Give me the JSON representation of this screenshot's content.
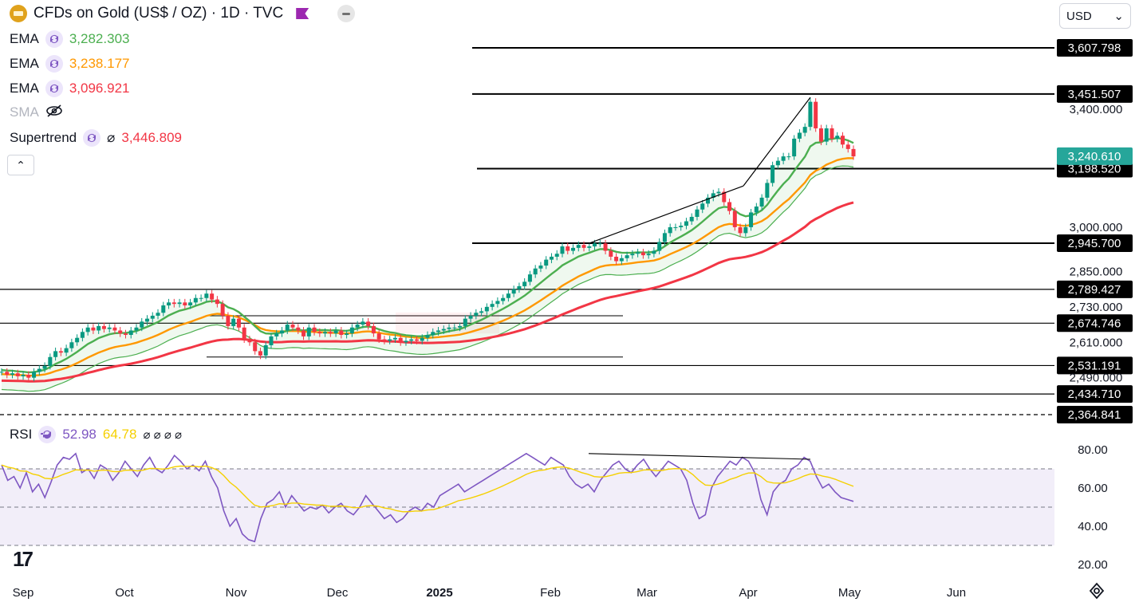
{
  "header": {
    "title": "CFDs on Gold (US$ / OZ) · 1D · TVC",
    "currency": "USD"
  },
  "indicators": [
    {
      "name": "EMA",
      "value": "3,282.303",
      "color": "#4caf50"
    },
    {
      "name": "EMA",
      "value": "3,238.177",
      "color": "#ff9800"
    },
    {
      "name": "EMA",
      "value": "3,096.921",
      "color": "#f23645"
    },
    {
      "name": "SMA",
      "value": "",
      "color": "#b2b5be"
    },
    {
      "name": "Supertrend",
      "value": "3,446.809",
      "color": "#f23645",
      "prefix": "⌀"
    }
  ],
  "rsi_legend": {
    "name": "RSI",
    "value": "52.98",
    "ma_value": "64.78",
    "extra": "⌀ ⌀ ⌀ ⌀"
  },
  "chart_data": {
    "type": "candlestick",
    "price_axis_ticks": [
      3400,
      3000,
      2850,
      2730,
      2610,
      2490
    ],
    "price_axis_tick_labels": [
      "3,400.000",
      "3,000.000",
      "2,850.000",
      "2,730.000",
      "2,610.000",
      "2,490.000"
    ],
    "price_ylim": [
      2364,
      3640
    ],
    "horizontal_levels": [
      {
        "value": 3607.798,
        "label": "3,607.798",
        "style": "solid"
      },
      {
        "value": 3451.507,
        "label": "3,451.507",
        "style": "solid"
      },
      {
        "value": 3198.52,
        "label": "3,198.520",
        "style": "solid"
      },
      {
        "value": 2945.7,
        "label": "2,945.700",
        "style": "solid"
      },
      {
        "value": 2789.427,
        "label": "2,789.427",
        "style": "solid"
      },
      {
        "value": 2674.746,
        "label": "2,674.746",
        "style": "solid"
      },
      {
        "value": 2531.191,
        "label": "2,531.191",
        "style": "solid"
      },
      {
        "value": 2434.71,
        "label": "2,434.710",
        "style": "solid"
      },
      {
        "value": 2364.841,
        "label": "2,364.841",
        "style": "dashed"
      }
    ],
    "last_price": {
      "value": 3240.61,
      "label": "3,240.610"
    },
    "x_axis_labels": [
      "Sep",
      "Oct",
      "Nov",
      "Dec",
      "2025",
      "Feb",
      "Mar",
      "Apr",
      "May",
      "Jun"
    ],
    "approx_closes": [
      2510,
      2500,
      2505,
      2495,
      2500,
      2490,
      2510,
      2520,
      2530,
      2560,
      2580,
      2575,
      2590,
      2610,
      2625,
      2645,
      2660,
      2650,
      2665,
      2655,
      2660,
      2650,
      2640,
      2635,
      2650,
      2660,
      2680,
      2690,
      2700,
      2710,
      2735,
      2745,
      2740,
      2745,
      2735,
      2745,
      2760,
      2760,
      2775,
      2755,
      2740,
      2700,
      2665,
      2690,
      2660,
      2620,
      2610,
      2580,
      2565,
      2600,
      2630,
      2640,
      2650,
      2670,
      2660,
      2650,
      2630,
      2660,
      2645,
      2640,
      2645,
      2640,
      2650,
      2635,
      2640,
      2660,
      2670,
      2680,
      2665,
      2640,
      2620,
      2615,
      2620,
      2625,
      2610,
      2615,
      2620,
      2615,
      2625,
      2635,
      2645,
      2650,
      2655,
      2660,
      2660,
      2665,
      2690,
      2700,
      2710,
      2715,
      2730,
      2740,
      2750,
      2760,
      2775,
      2790,
      2800,
      2815,
      2840,
      2860,
      2870,
      2890,
      2900,
      2910,
      2935,
      2920,
      2930,
      2940,
      2930,
      2935,
      2945,
      2945,
      2920,
      2900,
      2885,
      2895,
      2905,
      2910,
      2915,
      2905,
      2910,
      2920,
      2950,
      2980,
      3000,
      3000,
      3005,
      3020,
      3035,
      3060,
      3080,
      3100,
      3115,
      3120,
      3085,
      3055,
      3000,
      2980,
      3000,
      3050,
      3070,
      3100,
      3150,
      3210,
      3225,
      3240,
      3240,
      3300,
      3320,
      3340,
      3425,
      3335,
      3290,
      3335,
      3300,
      3310,
      3280,
      3265,
      3240
    ],
    "ema_fast": {
      "name": "EMA",
      "last": 3282.303
    },
    "ema_mid": {
      "name": "EMA",
      "last": 3238.177
    },
    "ema_slow": {
      "name": "EMA",
      "last": 3096.921
    },
    "supertrend_last": 3446.809,
    "rsi": {
      "ylim": [
        10,
        90
      ],
      "ticks": [
        80,
        60,
        40,
        20
      ],
      "tick_labels": [
        "80.00",
        "60.00",
        "40.00",
        "20.00"
      ],
      "bands": [
        70,
        50,
        30
      ],
      "last": 52.98,
      "ma_last": 64.78,
      "values": [
        72,
        64,
        66,
        60,
        68,
        58,
        62,
        55,
        63,
        72,
        76,
        75,
        78,
        68,
        70,
        65,
        72,
        70,
        64,
        68,
        74,
        70,
        66,
        72,
        76,
        70,
        68,
        72,
        77,
        74,
        70,
        72,
        69,
        74,
        66,
        60,
        48,
        40,
        44,
        36,
        33,
        32,
        44,
        52,
        54,
        58,
        50,
        56,
        52,
        48,
        50,
        49,
        51,
        47,
        50,
        52,
        48,
        46,
        50,
        56,
        52,
        48,
        44,
        46,
        42,
        44,
        48,
        50,
        48,
        52,
        50,
        56,
        58,
        60,
        62,
        58,
        60,
        62,
        64,
        66,
        68,
        70,
        72,
        74,
        76,
        78,
        76,
        74,
        72,
        76,
        74,
        72,
        66,
        62,
        60,
        62,
        58,
        64,
        68,
        72,
        74,
        70,
        68,
        72,
        75,
        70,
        66,
        70,
        74,
        72,
        70,
        64,
        52,
        44,
        46,
        60,
        66,
        70,
        74,
        72,
        76,
        74,
        68,
        54,
        46,
        58,
        62,
        64,
        70,
        72,
        76,
        74,
        66,
        60,
        62,
        58,
        55,
        54,
        53
      ]
    },
    "trendlines": [
      {
        "from": [
          "Feb 12",
          2945
        ],
        "to": [
          "Apr 2",
          3140
        ]
      },
      {
        "from": [
          "Apr 2",
          3140
        ],
        "to": [
          "Apr 21",
          3440
        ]
      },
      {
        "from": [
          "Feb 12 RSI",
          78
        ],
        "to": [
          "Apr 21 RSI",
          75
        ]
      }
    ]
  }
}
